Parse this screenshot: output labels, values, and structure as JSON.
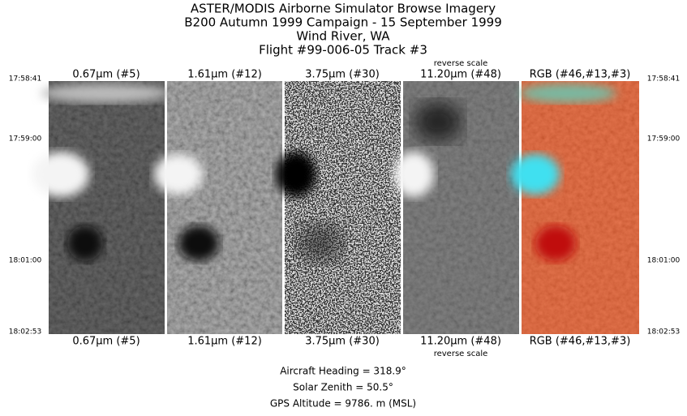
{
  "header": {
    "lines": [
      "ASTER/MODIS Airborne Simulator Browse Imagery",
      "B200 Autumn 1999 Campaign - 15 September 1999",
      "Wind River, WA",
      "Flight #99-006-05 Track #3"
    ]
  },
  "times": [
    "17:58:41",
    "17:59:00",
    "18:01:00",
    "18:02:53"
  ],
  "panels": [
    {
      "label": "0.67µm (#5)"
    },
    {
      "label": "1.61µm (#12)"
    },
    {
      "label": "3.75µm (#30)"
    },
    {
      "label": "11.20µm (#48)",
      "note": "reverse scale"
    },
    {
      "label": "RGB (#46,#13,#3)"
    }
  ],
  "footer": {
    "lines": [
      "Aircraft Heading =  318.9°",
      "Solar Zenith =   50.5°",
      "GPS Altitude =   9786. m (MSL)"
    ]
  }
}
